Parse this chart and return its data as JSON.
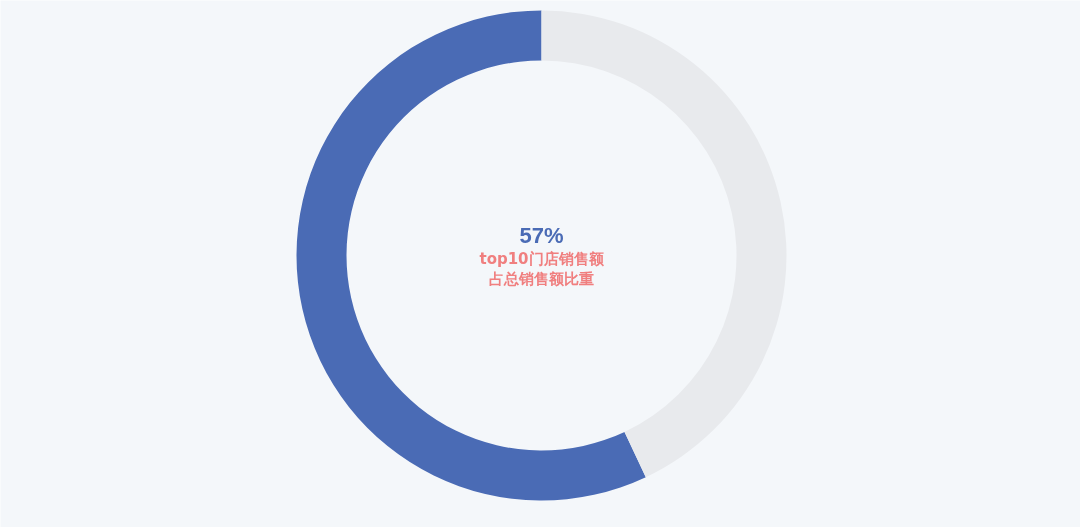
{
  "chart_data": {
    "type": "donut",
    "title": "top10门店销售额",
    "subtitle": "占总销售额比重",
    "categories": [
      null,
      null
    ],
    "values": [
      57,
      43
    ],
    "colors": [
      "#4a6bb5",
      "#e8eaed"
    ],
    "value_labels": [
      "57%",
      null
    ]
  }
}
